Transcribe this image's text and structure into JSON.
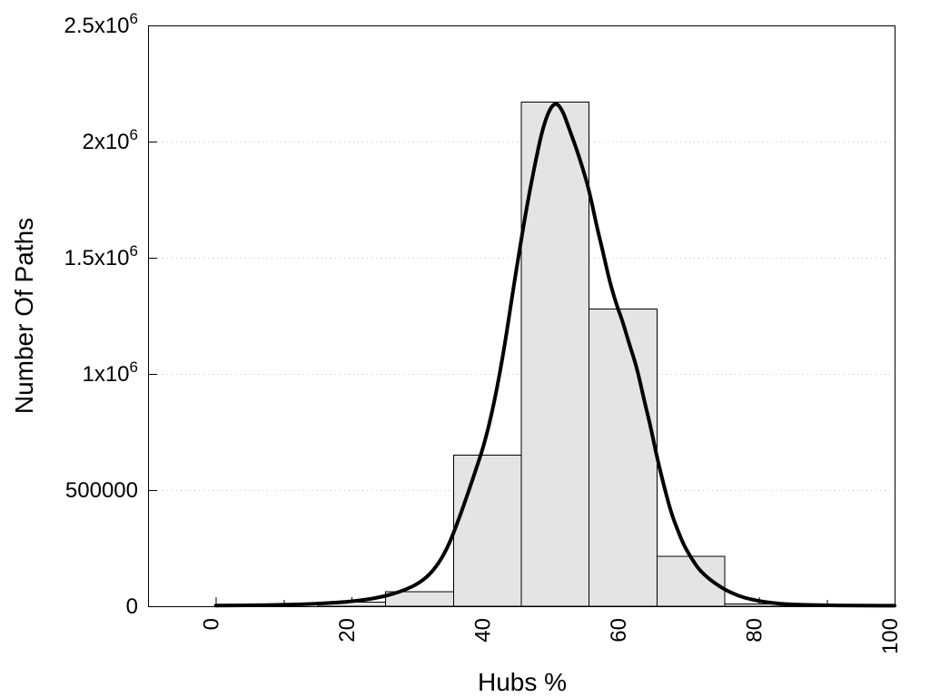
{
  "chart_data": {
    "type": "bar",
    "subtype": "histogram-with-fit-curve",
    "title": "",
    "xlabel": "Hubs %",
    "ylabel": "Number Of Paths",
    "xlim": [
      -10,
      100
    ],
    "ylim": [
      0,
      2500000
    ],
    "grid": "horizontal-dotted",
    "legend": "none",
    "x_ticks": [
      {
        "value": 0,
        "label": "0",
        "major": true
      },
      {
        "value": 10,
        "label": "",
        "major": false
      },
      {
        "value": 20,
        "label": "20",
        "major": true
      },
      {
        "value": 30,
        "label": "",
        "major": false
      },
      {
        "value": 40,
        "label": "40",
        "major": true
      },
      {
        "value": 50,
        "label": "",
        "major": false
      },
      {
        "value": 60,
        "label": "60",
        "major": true
      },
      {
        "value": 70,
        "label": "",
        "major": false
      },
      {
        "value": 80,
        "label": "80",
        "major": true
      },
      {
        "value": 90,
        "label": "",
        "major": false
      },
      {
        "value": 100,
        "label": "100",
        "major": true
      }
    ],
    "x_tick_label_rotation_deg": -90,
    "y_ticks": [
      {
        "value": 0,
        "base": "0",
        "sup": ""
      },
      {
        "value": 500000,
        "base": "500000",
        "sup": ""
      },
      {
        "value": 1000000,
        "base": "1x10",
        "sup": "6"
      },
      {
        "value": 1500000,
        "base": "1.5x10",
        "sup": "6"
      },
      {
        "value": 2000000,
        "base": "2x10",
        "sup": "6"
      },
      {
        "value": 2500000,
        "base": "2.5x10",
        "sup": "6"
      }
    ],
    "grid_values": [
      500000,
      1000000,
      1500000,
      2000000
    ],
    "bars": [
      {
        "from": 15,
        "to": 25,
        "value": 18000
      },
      {
        "from": 25,
        "to": 35,
        "value": 62000
      },
      {
        "from": 35,
        "to": 45,
        "value": 650000
      },
      {
        "from": 45,
        "to": 55,
        "value": 2170000
      },
      {
        "from": 55,
        "to": 65,
        "value": 1280000
      },
      {
        "from": 65,
        "to": 75,
        "value": 215000
      },
      {
        "from": 75,
        "to": 85,
        "value": 10000
      }
    ],
    "curve_points": [
      [
        0,
        3000
      ],
      [
        3,
        3500
      ],
      [
        6,
        4500
      ],
      [
        9,
        6000
      ],
      [
        12,
        8000
      ],
      [
        15,
        11000
      ],
      [
        18,
        16000
      ],
      [
        20,
        21000
      ],
      [
        22,
        28000
      ],
      [
        24,
        38000
      ],
      [
        26,
        52000
      ],
      [
        28,
        72000
      ],
      [
        30,
        100000
      ],
      [
        32,
        150000
      ],
      [
        34,
        240000
      ],
      [
        36,
        390000
      ],
      [
        38,
        560000
      ],
      [
        40,
        740000
      ],
      [
        42,
        1020000
      ],
      [
        44,
        1400000
      ],
      [
        45,
        1580000
      ],
      [
        46,
        1750000
      ],
      [
        47,
        1900000
      ],
      [
        48,
        2040000
      ],
      [
        49,
        2130000
      ],
      [
        50,
        2170000
      ],
      [
        51,
        2140000
      ],
      [
        52,
        2060000
      ],
      [
        53,
        1980000
      ],
      [
        54,
        1890000
      ],
      [
        55,
        1790000
      ],
      [
        56,
        1650000
      ],
      [
        57,
        1530000
      ],
      [
        58,
        1400000
      ],
      [
        59,
        1300000
      ],
      [
        60,
        1220000
      ],
      [
        61,
        1120000
      ],
      [
        62,
        1030000
      ],
      [
        63,
        900000
      ],
      [
        64,
        780000
      ],
      [
        65,
        640000
      ],
      [
        66,
        520000
      ],
      [
        67,
        410000
      ],
      [
        68,
        330000
      ],
      [
        69,
        260000
      ],
      [
        70,
        210000
      ],
      [
        71,
        165000
      ],
      [
        72,
        135000
      ],
      [
        73,
        110000
      ],
      [
        74,
        90000
      ],
      [
        75,
        72000
      ],
      [
        76,
        58000
      ],
      [
        77,
        45000
      ],
      [
        78,
        36000
      ],
      [
        80,
        22000
      ],
      [
        82,
        14000
      ],
      [
        84,
        9000
      ],
      [
        86,
        7000
      ],
      [
        88,
        5000
      ],
      [
        90,
        4000
      ],
      [
        93,
        3000
      ],
      [
        96,
        2500
      ],
      [
        100,
        2500
      ]
    ],
    "colors": {
      "background": "#ffffff",
      "bar_fill": "#e4e4e4",
      "bar_border": "#000000",
      "curve": "#000000",
      "grid": "#c9c9c9",
      "axis": "#000000",
      "text": "#000000"
    }
  }
}
